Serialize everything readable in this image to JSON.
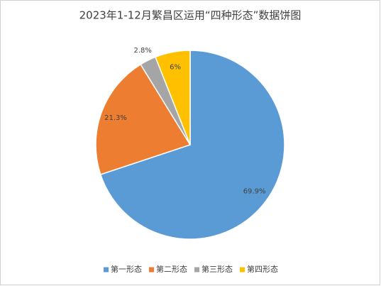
{
  "chart_data": {
    "type": "pie",
    "title": "2023年1-12月繁昌区运用“四种形态”数据饼图",
    "categories": [
      "第一形态",
      "第二形态",
      "第三形态",
      "第四形态"
    ],
    "values": [
      69.9,
      21.3,
      2.8,
      6
    ],
    "value_labels": [
      "69.9%",
      "21.3%",
      "2.8%",
      "6%"
    ],
    "colors": [
      "#5b9bd5",
      "#ed7d31",
      "#a5a5a5",
      "#ffc000"
    ],
    "legend": "bottom"
  }
}
